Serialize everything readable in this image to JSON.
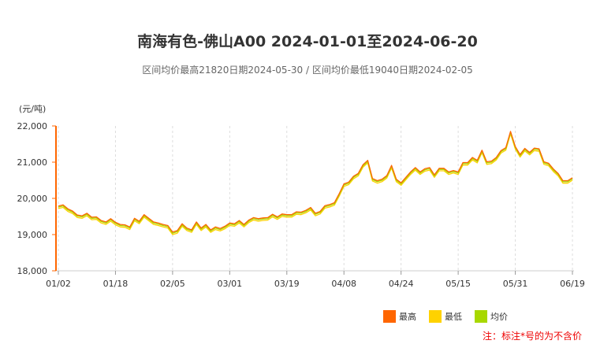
{
  "chart_data": {
    "type": "line",
    "title": "南海有色-佛山A00 2024-01-01至2024-06-20",
    "subtitle": "区间均价最高21820日期2024-05-30 / 区间均价最低19040日期2024-02-05",
    "ylabel": "(元/吨)",
    "ylim": [
      18000,
      22000
    ],
    "yticks": [
      "18,000",
      "19,000",
      "20,000",
      "21,000",
      "22,000"
    ],
    "ytick_values": [
      18000,
      19000,
      20000,
      21000,
      22000
    ],
    "xtick_labels": [
      "01/02",
      "01/18",
      "02/05",
      "03/01",
      "03/19",
      "04/08",
      "04/24",
      "05/15",
      "05/31",
      "06/19"
    ],
    "xtick_dates": [
      "01-02",
      "01-18",
      "02-05",
      "03-01",
      "03-19",
      "04-08",
      "04-24",
      "05-15",
      "05-31",
      "06-19"
    ],
    "grid": "vertical dashed",
    "legend_placement": "bottom-right",
    "x": [
      "01-02",
      "01-03",
      "01-04",
      "01-05",
      "01-08",
      "01-09",
      "01-10",
      "01-11",
      "01-12",
      "01-15",
      "01-16",
      "01-17",
      "01-18",
      "01-19",
      "01-22",
      "01-23",
      "01-24",
      "01-25",
      "01-26",
      "01-29",
      "01-30",
      "01-31",
      "02-01",
      "02-02",
      "02-05",
      "02-06",
      "02-07",
      "02-19",
      "02-20",
      "02-21",
      "02-22",
      "02-23",
      "02-26",
      "02-27",
      "02-28",
      "02-29",
      "03-01",
      "03-04",
      "03-05",
      "03-06",
      "03-07",
      "03-08",
      "03-11",
      "03-12",
      "03-13",
      "03-14",
      "03-15",
      "03-18",
      "03-19",
      "03-20",
      "03-21",
      "03-22",
      "03-25",
      "03-26",
      "03-27",
      "03-28",
      "03-29",
      "04-01",
      "04-02",
      "04-03",
      "04-08",
      "04-09",
      "04-10",
      "04-11",
      "04-12",
      "04-15",
      "04-16",
      "04-17",
      "04-18",
      "04-19",
      "04-22",
      "04-23",
      "04-24",
      "04-25",
      "04-26",
      "04-29",
      "04-30",
      "05-06",
      "05-07",
      "05-08",
      "05-09",
      "05-10",
      "05-13",
      "05-14",
      "05-15",
      "05-16",
      "05-17",
      "05-20",
      "05-21",
      "05-22",
      "05-23",
      "05-24",
      "05-27",
      "05-28",
      "05-29",
      "05-30",
      "05-31",
      "06-03",
      "06-04",
      "06-05",
      "06-06",
      "06-07",
      "06-11",
      "06-12",
      "06-13",
      "06-14",
      "06-17",
      "06-18",
      "06-19"
    ],
    "series": [
      {
        "name": "最高",
        "color": "#ff6600",
        "values": [
          19790,
          19820,
          19710,
          19650,
          19540,
          19520,
          19590,
          19480,
          19490,
          19390,
          19350,
          19440,
          19340,
          19280,
          19270,
          19210,
          19450,
          19370,
          19550,
          19450,
          19350,
          19320,
          19280,
          19250,
          19070,
          19110,
          19300,
          19180,
          19130,
          19350,
          19180,
          19280,
          19130,
          19210,
          19170,
          19230,
          19320,
          19300,
          19390,
          19280,
          19400,
          19470,
          19440,
          19460,
          19470,
          19560,
          19490,
          19570,
          19550,
          19550,
          19630,
          19620,
          19670,
          19750,
          19590,
          19640,
          19800,
          19830,
          19880,
          20130,
          20400,
          20450,
          20610,
          20690,
          20930,
          21050,
          20550,
          20490,
          20530,
          20630,
          20910,
          20530,
          20430,
          20580,
          20730,
          20850,
          20730,
          20820,
          20850,
          20650,
          20830,
          20830,
          20730,
          20770,
          20730,
          20990,
          20990,
          21130,
          21050,
          21330,
          21010,
          21030,
          21130,
          21320,
          21400,
          21850,
          21430,
          21210,
          21380,
          21270,
          21390,
          21370,
          21010,
          20970,
          20810,
          20690,
          20490,
          20490,
          20570
        ]
      },
      {
        "name": "最低",
        "color": "#ffd200",
        "values": [
          19720,
          19750,
          19640,
          19580,
          19470,
          19450,
          19520,
          19410,
          19420,
          19320,
          19280,
          19370,
          19270,
          19210,
          19200,
          19140,
          19380,
          19300,
          19480,
          19380,
          19280,
          19250,
          19210,
          19180,
          19000,
          19040,
          19230,
          19110,
          19060,
          19280,
          19110,
          19210,
          19060,
          19140,
          19100,
          19160,
          19250,
          19230,
          19320,
          19210,
          19330,
          19400,
          19370,
          19390,
          19400,
          19490,
          19420,
          19500,
          19480,
          19480,
          19560,
          19550,
          19600,
          19680,
          19520,
          19570,
          19730,
          19760,
          19810,
          20060,
          20330,
          20380,
          20540,
          20620,
          20860,
          20980,
          20480,
          20420,
          20460,
          20560,
          20840,
          20460,
          20360,
          20510,
          20660,
          20780,
          20660,
          20750,
          20780,
          20580,
          20760,
          20760,
          20660,
          20700,
          20660,
          20920,
          20920,
          21060,
          20980,
          21260,
          20940,
          20960,
          21060,
          21250,
          21330,
          21780,
          21360,
          21140,
          21310,
          21200,
          21320,
          21300,
          20940,
          20900,
          20740,
          20620,
          20420,
          20420,
          20500
        ]
      },
      {
        "name": "均价",
        "color": "#a8d800",
        "values": [
          19760,
          19790,
          19680,
          19620,
          19510,
          19490,
          19560,
          19450,
          19460,
          19360,
          19320,
          19410,
          19310,
          19250,
          19240,
          19180,
          19420,
          19340,
          19520,
          19420,
          19320,
          19290,
          19250,
          19220,
          19040,
          19080,
          19270,
          19150,
          19100,
          19320,
          19150,
          19250,
          19100,
          19180,
          19140,
          19200,
          19290,
          19270,
          19360,
          19250,
          19370,
          19440,
          19410,
          19430,
          19440,
          19530,
          19460,
          19540,
          19520,
          19520,
          19600,
          19590,
          19640,
          19720,
          19560,
          19610,
          19770,
          19800,
          19850,
          20100,
          20370,
          20420,
          20580,
          20660,
          20900,
          21020,
          20520,
          20460,
          20500,
          20600,
          20880,
          20500,
          20400,
          20550,
          20700,
          20820,
          20700,
          20790,
          20820,
          20620,
          20800,
          20800,
          20700,
          20740,
          20700,
          20960,
          20960,
          21100,
          21020,
          21300,
          20980,
          21000,
          21100,
          21290,
          21370,
          21820,
          21400,
          21180,
          21350,
          21240,
          21360,
          21340,
          20980,
          20940,
          20780,
          20660,
          20460,
          20460,
          20540
        ]
      }
    ]
  },
  "axis_color": "#ff6600",
  "note": "注：标注*号的为不含价"
}
